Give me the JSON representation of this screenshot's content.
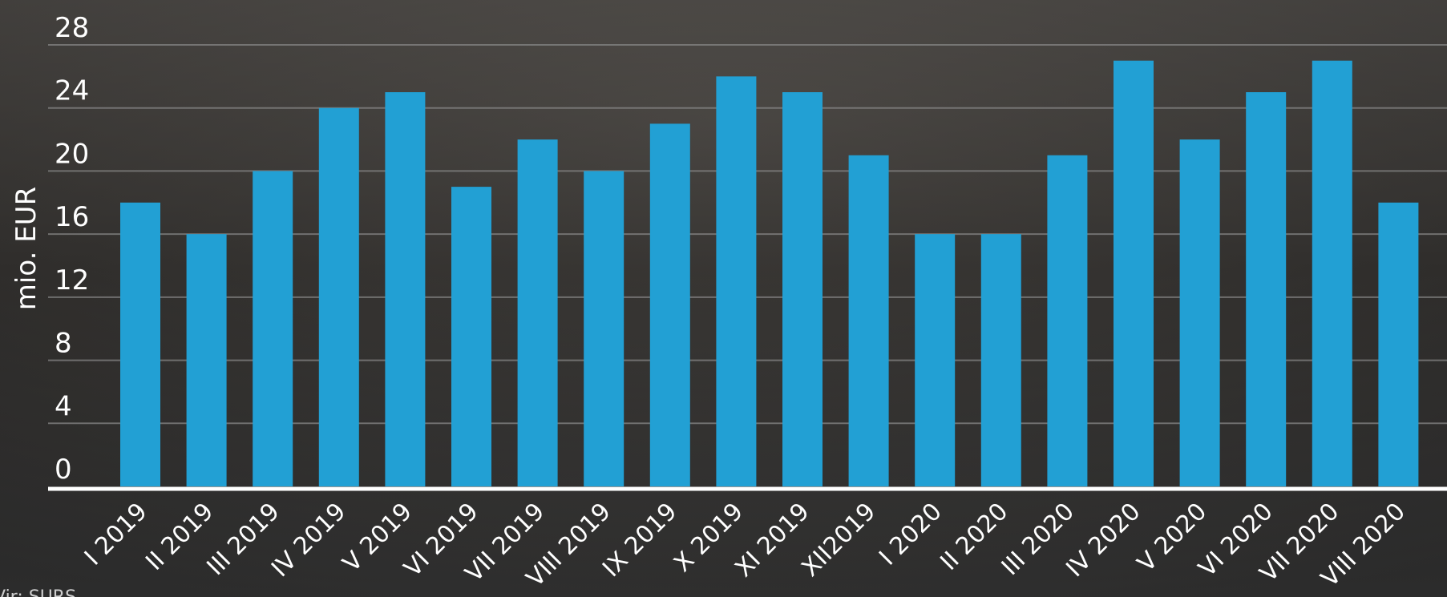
{
  "chart_data": {
    "type": "bar",
    "title": "",
    "xlabel": "",
    "ylabel": "mio. EUR",
    "ylim": [
      0,
      28
    ],
    "yticks": [
      0,
      4,
      8,
      12,
      16,
      20,
      24,
      28
    ],
    "grid": true,
    "legend": "none",
    "categories": [
      "I 2019",
      "II 2019",
      "III 2019",
      "IV 2019",
      "V 2019",
      "VI 2019",
      "VII 2019",
      "VIII 2019",
      "IX 2019",
      "X 2019",
      "XI 2019",
      "XII2019",
      "I 2020",
      "II 2020",
      "III 2020",
      "IV 2020",
      "V 2020",
      "VI 2020",
      "VII 2020",
      "VIII 2020"
    ],
    "values": [
      18,
      16,
      20,
      24,
      25,
      19,
      22,
      20,
      23,
      26,
      25,
      21,
      16,
      16,
      21,
      27,
      22,
      25,
      27,
      18
    ],
    "source": "Vir: SURS"
  },
  "colors": {
    "bar": "#22a0d4",
    "gridline": "#8a8a8a",
    "axis": "#ffffff",
    "text": "#ffffff",
    "background_top": "#4a4744",
    "background_bottom": "#262626"
  }
}
